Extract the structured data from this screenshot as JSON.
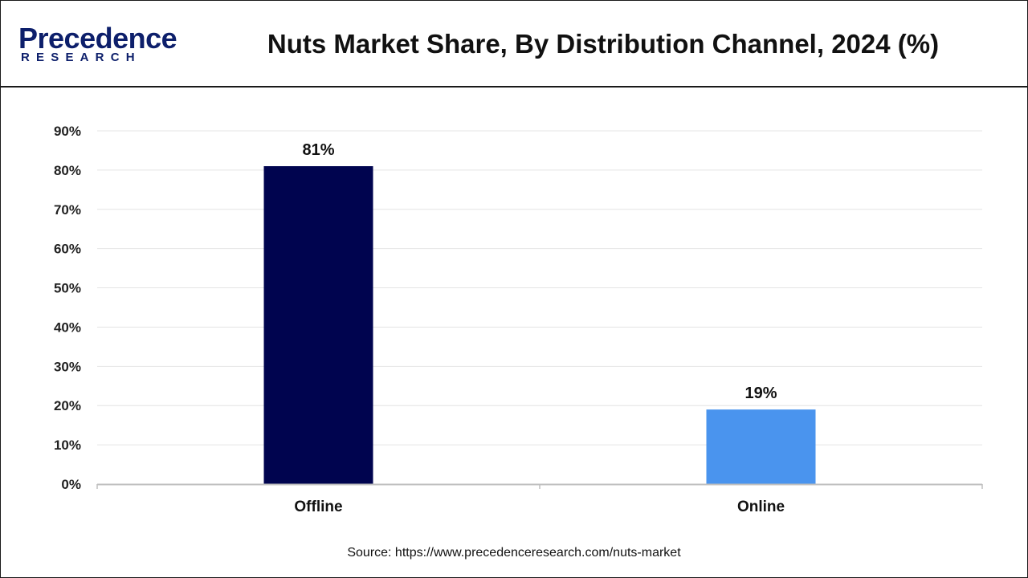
{
  "header": {
    "logo_word": "Precedence",
    "logo_sub": "RESEARCH",
    "title": "Nuts Market Share, By Distribution Channel, 2024 (%)"
  },
  "colors": {
    "brand": "#0d1f6b",
    "offline": "#00044f",
    "online": "#4a94ee",
    "grid": "#e4e4e4",
    "axis": "#bfbfbf"
  },
  "chart_data": {
    "type": "bar",
    "title": "Nuts Market Share, By Distribution Channel, 2024 (%)",
    "xlabel": "",
    "ylabel": "",
    "categories": [
      "Offline",
      "Online"
    ],
    "values": [
      81,
      19
    ],
    "data_labels": [
      "81%",
      "19%"
    ],
    "bar_colors": [
      "#00044f",
      "#4a94ee"
    ],
    "ylim": [
      0,
      90
    ],
    "yticks": [
      0,
      10,
      20,
      30,
      40,
      50,
      60,
      70,
      80,
      90
    ],
    "ytick_labels": [
      "0%",
      "10%",
      "20%",
      "30%",
      "40%",
      "50%",
      "60%",
      "70%",
      "80%",
      "90%"
    ],
    "grid": true,
    "legend": "none"
  },
  "footer": {
    "source": "Source: https://www.precedenceresearch.com/nuts-market"
  }
}
